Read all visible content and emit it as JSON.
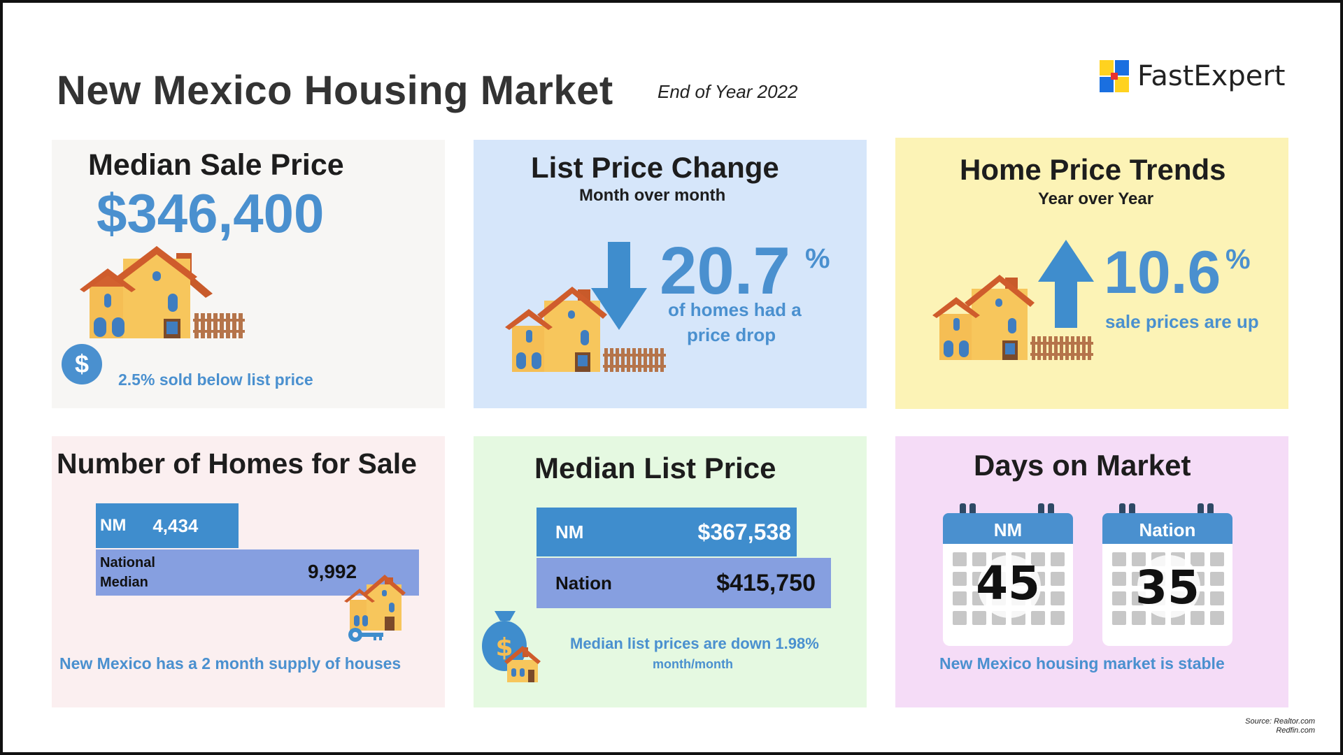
{
  "header": {
    "title": "New Mexico Housing Market",
    "subtitle": "End of Year 2022",
    "brand": "FastExpert",
    "brand_colors": [
      "#ffd21f",
      "#1a6fe0",
      "#e8312f",
      "#1a6fe0"
    ]
  },
  "median_sale_price": {
    "heading": "Median Sale Price",
    "value": "$346,400",
    "note": "2.5% sold below list price",
    "dollar_symbol": "$"
  },
  "list_price_change": {
    "heading": "List Price Change",
    "subheading": "Month over month",
    "value": "20.7",
    "percent": "%",
    "note_line1": "of homes had a",
    "note_line2": "price drop",
    "arrow": "down-arrow-icon"
  },
  "home_price_trends": {
    "heading": "Home Price Trends",
    "subheading": "Year over Year",
    "value": "10.6",
    "percent": "%",
    "note": "sale prices are up",
    "arrow": "up-arrow-icon"
  },
  "homes_for_sale": {
    "heading": "Number of Homes for Sale",
    "nm_label": "NM",
    "nm_value": "4,434",
    "nm_fraction": 0.4437,
    "national_label_line1": "National",
    "national_label_line2": "Median",
    "national_value": "9,992",
    "note": "New Mexico has a 2 month supply of houses"
  },
  "median_list_price": {
    "heading": "Median List Price",
    "nm_label": "NM",
    "nm_value": "$367,538",
    "nation_label": "Nation",
    "nation_value": "$415,750",
    "note_line1": "Median list prices are down 1.98%",
    "note_line2": "month/month"
  },
  "days_on_market": {
    "heading": "Days on Market",
    "nm_label": "NM",
    "nm_days": "45",
    "nation_label": "Nation",
    "nation_days": "35",
    "note": "New Mexico housing market is stable"
  },
  "source": {
    "line1": "Source: Realtor.com",
    "line2": "Redfin.com"
  },
  "colors": {
    "accent_blue": "#4a90cf",
    "bar_nm": "#3f8dcd",
    "bar_nation": "#869fe0"
  }
}
